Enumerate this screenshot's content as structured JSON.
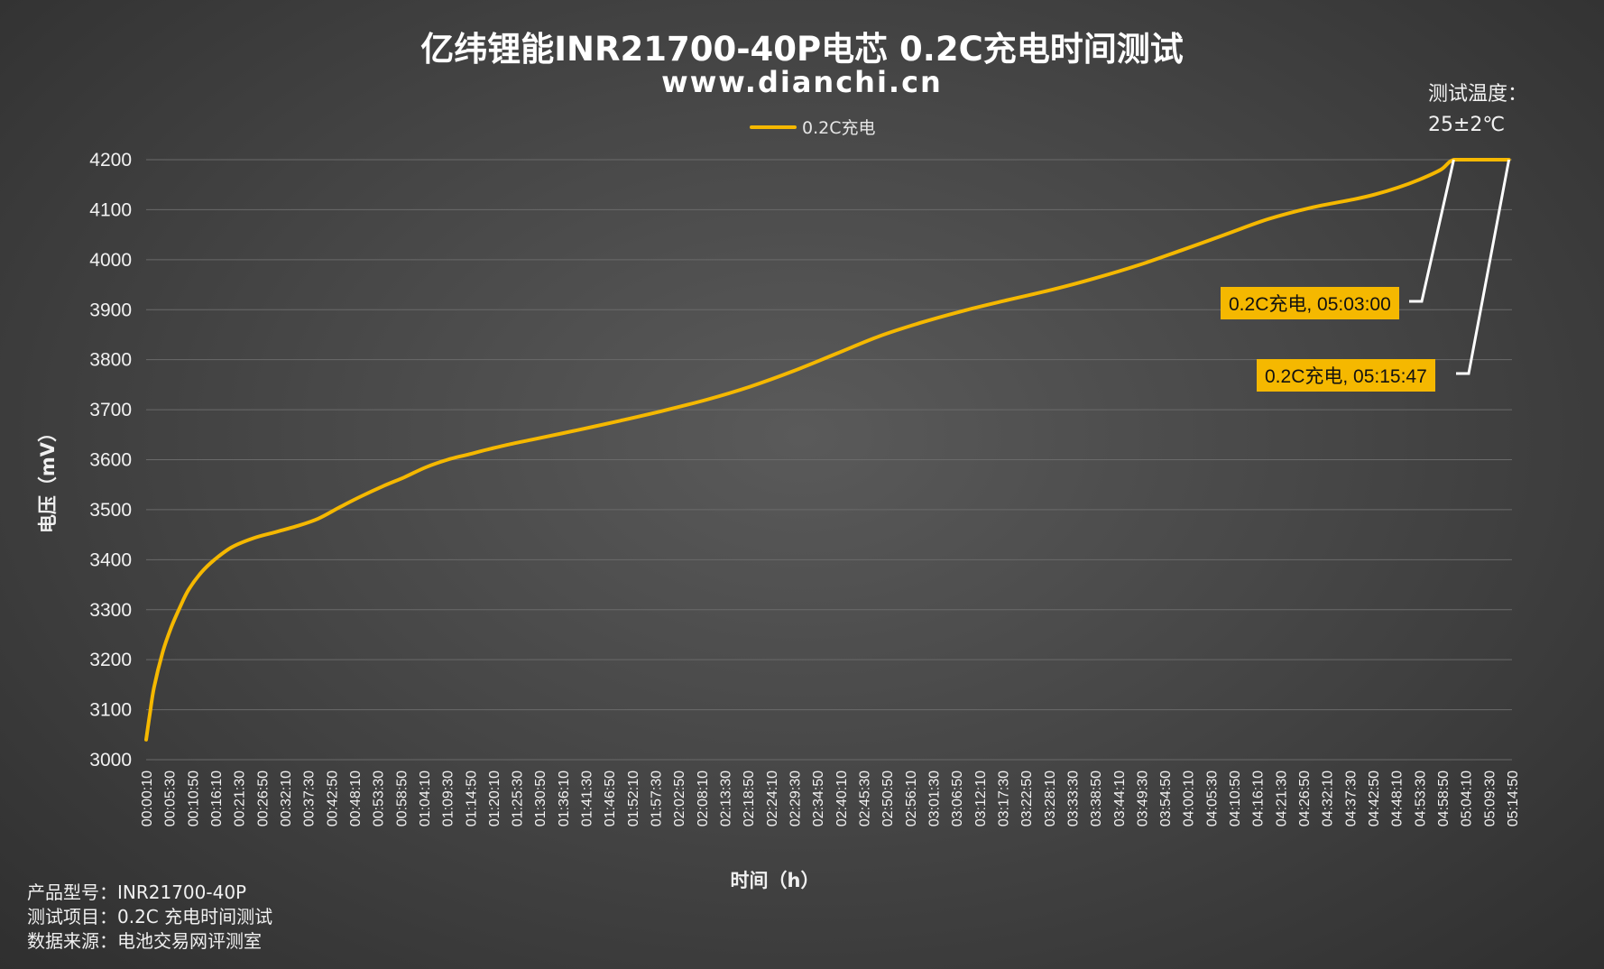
{
  "chart_data": {
    "type": "line",
    "title": "亿纬锂能INR21700-40P电芯 0.2C充电时间测试",
    "subtitle": "www.dianchi.cn",
    "xlabel": "时间（h）",
    "ylabel": "电压（mV）",
    "ylim": [
      3000,
      4200
    ],
    "yticks": [
      3000,
      3100,
      3200,
      3300,
      3400,
      3500,
      3600,
      3700,
      3800,
      3900,
      4000,
      4100,
      4200
    ],
    "xlim_minutes": [
      0.1667,
      316.5
    ],
    "grid": true,
    "legend_position": "top-center",
    "x_tick_labels": [
      "00:00:10",
      "00:05:30",
      "00:10:50",
      "00:16:10",
      "00:21:30",
      "00:26:50",
      "00:32:10",
      "00:37:30",
      "00:42:50",
      "00:48:10",
      "00:53:30",
      "00:58:50",
      "01:04:10",
      "01:09:30",
      "01:14:50",
      "01:20:10",
      "01:25:30",
      "01:30:50",
      "01:36:10",
      "01:41:30",
      "01:46:50",
      "01:52:10",
      "01:57:30",
      "02:02:50",
      "02:08:10",
      "02:13:30",
      "02:18:50",
      "02:24:10",
      "02:29:30",
      "02:34:50",
      "02:40:10",
      "02:45:30",
      "02:50:50",
      "02:56:10",
      "03:01:30",
      "03:06:50",
      "03:12:10",
      "03:17:30",
      "03:22:50",
      "03:28:10",
      "03:33:30",
      "03:38:50",
      "03:44:10",
      "03:49:30",
      "03:54:50",
      "04:00:10",
      "04:05:30",
      "04:10:50",
      "04:16:10",
      "04:21:30",
      "04:26:50",
      "04:32:10",
      "04:37:30",
      "04:42:50",
      "04:48:10",
      "04:53:30",
      "04:58:50",
      "05:04:10",
      "05:09:30",
      "05:14:50"
    ],
    "series": [
      {
        "name": "0.2C充电",
        "color": "#f5b800",
        "x_time": [
          "00:00:10",
          "00:01:00",
          "00:02:00",
          "00:04:00",
          "00:06:00",
          "00:08:00",
          "00:10:00",
          "00:13:00",
          "00:16:00",
          "00:20:00",
          "00:25:00",
          "00:30:00",
          "00:35:00",
          "00:40:00",
          "00:45:00",
          "00:50:00",
          "00:55:00",
          "01:00:00",
          "01:05:00",
          "01:10:00",
          "01:15:00",
          "01:20:00",
          "01:25:00",
          "01:30:00",
          "01:40:00",
          "01:50:00",
          "02:00:00",
          "02:10:00",
          "02:20:00",
          "02:30:00",
          "02:40:00",
          "02:50:00",
          "03:00:00",
          "03:10:00",
          "03:20:00",
          "03:30:00",
          "03:40:00",
          "03:50:00",
          "04:00:00",
          "04:10:00",
          "04:20:00",
          "04:30:00",
          "04:40:00",
          "04:45:00",
          "04:50:00",
          "04:55:00",
          "05:00:00",
          "05:03:00",
          "05:08:00",
          "05:15:47"
        ],
        "y": [
          3040,
          3090,
          3145,
          3215,
          3265,
          3305,
          3340,
          3375,
          3400,
          3425,
          3443,
          3455,
          3467,
          3482,
          3505,
          3527,
          3547,
          3565,
          3585,
          3600,
          3611,
          3622,
          3632,
          3641,
          3659,
          3678,
          3698,
          3720,
          3746,
          3777,
          3812,
          3847,
          3875,
          3899,
          3920,
          3940,
          3963,
          3989,
          4019,
          4050,
          4081,
          4104,
          4121,
          4131,
          4144,
          4160,
          4180,
          4200,
          4200,
          4200
        ]
      }
    ],
    "annotations": [
      {
        "text": "0.2C充电, 05:03:00",
        "x_time": "05:03:00",
        "y": 4200
      },
      {
        "text": "0.2C充电, 05:15:47",
        "x_time": "05:15:47",
        "y": 4200
      }
    ]
  },
  "temperature_note": {
    "line1": "测试温度：",
    "line2": "25±2℃"
  },
  "info": [
    "产品型号：INR21700-40P",
    "测试项目：0.2C 充电时间测试",
    "数据来源：电池交易网评测室"
  ]
}
